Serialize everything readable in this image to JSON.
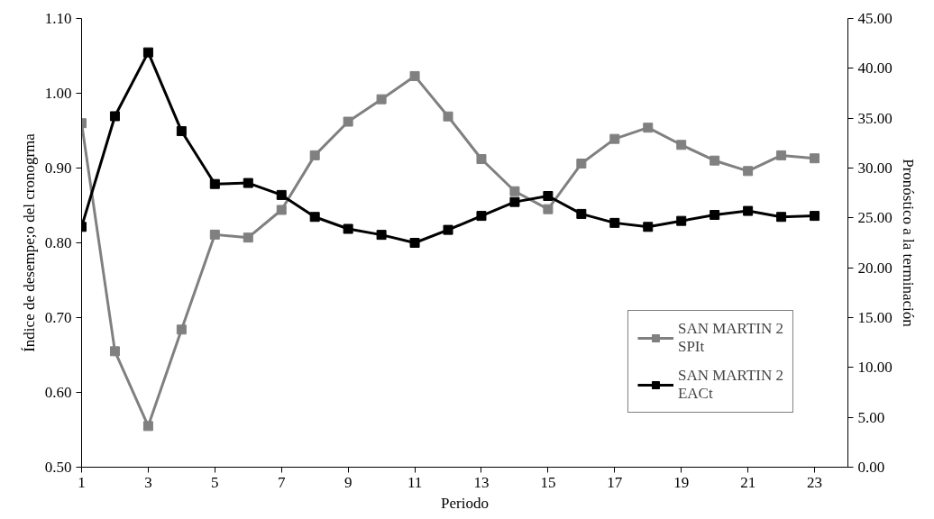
{
  "chart_data": {
    "type": "line",
    "xlabel": "Periodo",
    "ylabel": "Índice de desempe;o del cronogrma",
    "y2label": "Pronóstico a la terminación",
    "x": [
      1,
      2,
      3,
      4,
      5,
      6,
      7,
      8,
      9,
      10,
      11,
      12,
      13,
      14,
      15,
      16,
      17,
      18,
      19,
      20,
      21,
      22,
      23
    ],
    "xlim": [
      1,
      24
    ],
    "xticks": [
      1,
      3,
      5,
      7,
      9,
      11,
      13,
      15,
      17,
      19,
      21,
      23
    ],
    "ylim": [
      0.5,
      1.1
    ],
    "yticks": [
      {
        "value": 0.5,
        "label": "0.50"
      },
      {
        "value": 0.6,
        "label": "0.60"
      },
      {
        "value": 0.7,
        "label": "0.70"
      },
      {
        "value": 0.8,
        "label": "0.80"
      },
      {
        "value": 0.9,
        "label": "0.90"
      },
      {
        "value": 1.0,
        "label": "1.00"
      },
      {
        "value": 1.1,
        "label": "1.10"
      }
    ],
    "y2lim": [
      0,
      45
    ],
    "y2ticks": [
      {
        "value": 0,
        "label": "0.00"
      },
      {
        "value": 5,
        "label": "5.00"
      },
      {
        "value": 10,
        "label": "10.00"
      },
      {
        "value": 15,
        "label": "15.00"
      },
      {
        "value": 20,
        "label": "20.00"
      },
      {
        "value": 25,
        "label": "25.00"
      },
      {
        "value": 30,
        "label": "30.00"
      },
      {
        "value": 35,
        "label": "35.00"
      },
      {
        "value": 40,
        "label": "40.00"
      },
      {
        "value": 45,
        "label": "45.00"
      }
    ],
    "series": [
      {
        "name": "SAN MARTIN 2\nSPIt",
        "color": "#808080",
        "values": [
          0.96,
          0.655,
          0.555,
          0.684,
          0.811,
          0.807,
          0.844,
          0.917,
          0.962,
          0.992,
          1.023,
          0.969,
          0.912,
          0.869,
          0.845,
          0.906,
          0.939,
          0.954,
          0.931,
          0.91,
          0.896,
          0.917,
          0.913
        ]
      },
      {
        "name": "SAN MARTIN 2\nEACt",
        "color": "#000000",
        "axis": "y2",
        "values": [
          24.1,
          35.2,
          41.6,
          33.7,
          28.4,
          28.5,
          27.3,
          25.1,
          23.9,
          23.3,
          22.5,
          23.8,
          25.2,
          26.6,
          27.2,
          25.4,
          24.5,
          24.1,
          24.7,
          25.3,
          25.7,
          25.1,
          25.2
        ]
      }
    ],
    "marker": "square",
    "line_style": "solid",
    "grid": false,
    "legend": "bottom right"
  }
}
